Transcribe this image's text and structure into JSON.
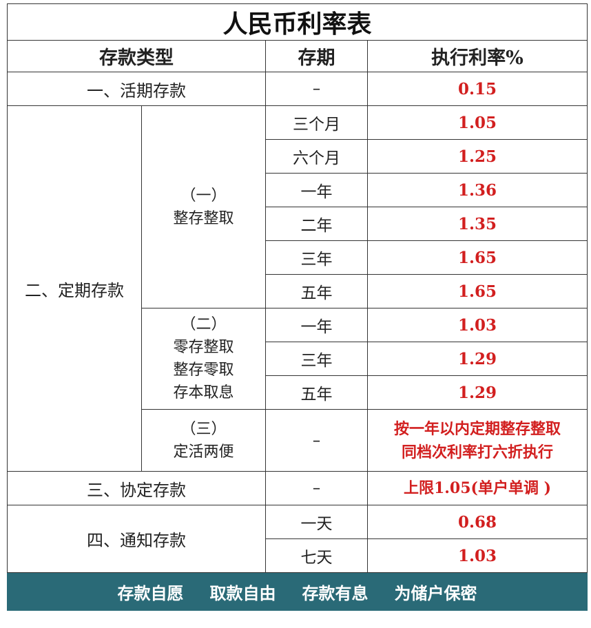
{
  "title": "人民币利率表",
  "headers": {
    "type": "存款类型",
    "term": "存期",
    "rate": "执行利率%"
  },
  "demand": {
    "label": "一、活期存款",
    "term": "–",
    "rate": "0.15"
  },
  "fixed": {
    "label": "二、定期存款",
    "lump": {
      "num": "（一）",
      "name": "整存整取",
      "rows": [
        {
          "term": "三个月",
          "rate": "1.05"
        },
        {
          "term": "六个月",
          "rate": "1.25"
        },
        {
          "term": "一年",
          "rate": "1.36"
        },
        {
          "term": "二年",
          "rate": "1.35"
        },
        {
          "term": "三年",
          "rate": "1.65"
        },
        {
          "term": "五年",
          "rate": "1.65"
        }
      ]
    },
    "installment": {
      "num": "（二）",
      "names": [
        "零存整取",
        "整存零取",
        "存本取息"
      ],
      "rows": [
        {
          "term": "一年",
          "rate": "1.03"
        },
        {
          "term": "三年",
          "rate": "1.29"
        },
        {
          "term": "五年",
          "rate": "1.29"
        }
      ]
    },
    "flexible": {
      "num": "（三）",
      "name": "定活两便",
      "term": "–",
      "note": [
        "按一年以内定期整存整取",
        "同档次利率打六折执行"
      ]
    }
  },
  "agreement": {
    "label": "三、协定存款",
    "term": "–",
    "rate": "上限1.05(单户单调 )"
  },
  "notice": {
    "label": "四、通知存款",
    "rows": [
      {
        "term": "一天",
        "rate": "0.68"
      },
      {
        "term": "七天",
        "rate": "1.03"
      }
    ]
  },
  "footer": [
    "存款自愿",
    "取款自由",
    "存款有息",
    "为储户保密"
  ],
  "colors": {
    "rate": "#d21f1f",
    "footer_bg": "#2a6a77",
    "border": "#333333"
  }
}
